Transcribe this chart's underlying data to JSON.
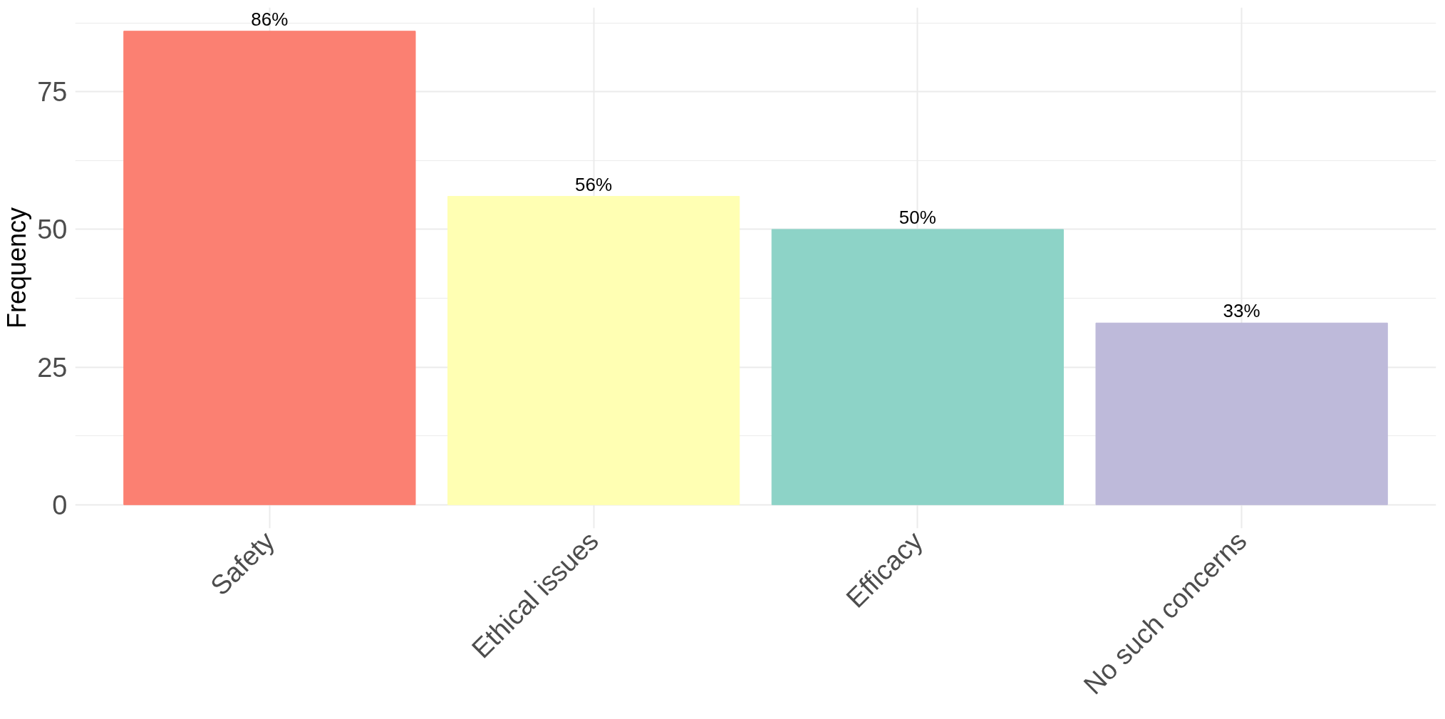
{
  "chart_data": {
    "type": "bar",
    "ylabel": "Frequency",
    "categories": [
      "Safety",
      "Ethical issues",
      "Efficacy",
      "No such concerns"
    ],
    "values": [
      86,
      56,
      50,
      33
    ],
    "colors": [
      "#fb8072",
      "#ffffb3",
      "#8dd3c7",
      "#bebada"
    ],
    "value_labels": [
      "86%",
      "56%",
      "50%",
      "33%"
    ],
    "ylim": [
      -4.3,
      90.3
    ],
    "yticks": [
      0,
      25,
      50,
      75
    ],
    "grid": true
  }
}
